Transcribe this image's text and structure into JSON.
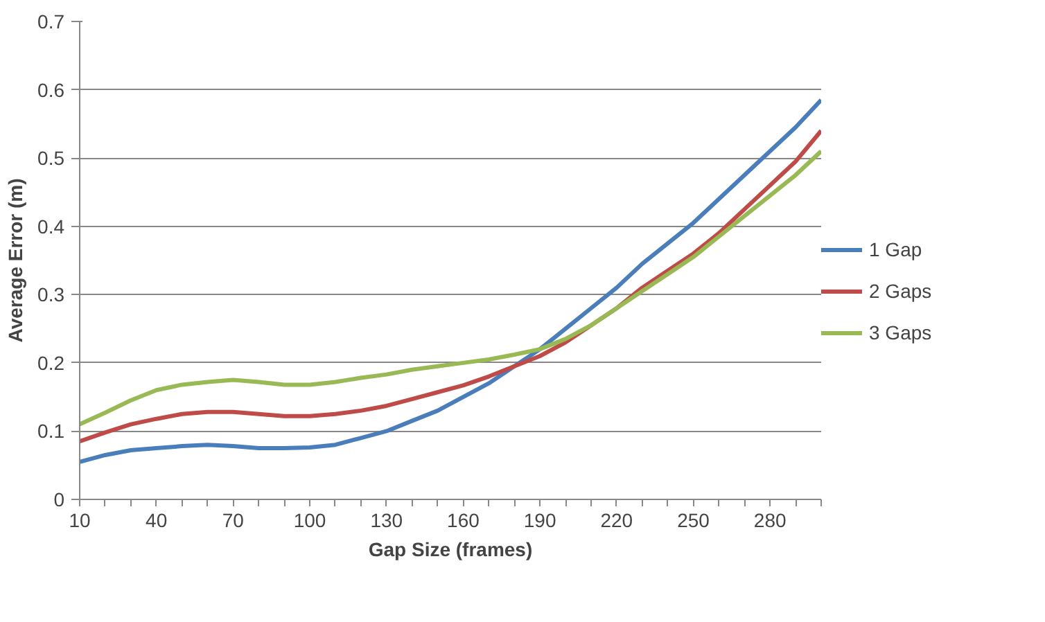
{
  "chart_data": {
    "type": "line",
    "xlabel": "Gap Size (frames)",
    "ylabel": "Average Error (m)",
    "categories": [
      "10",
      null,
      null,
      "40",
      null,
      null,
      "70",
      null,
      null,
      "100",
      null,
      null,
      "130",
      null,
      null,
      "160",
      null,
      null,
      "190",
      null,
      null,
      "220",
      null,
      null,
      "250",
      null,
      null,
      "280",
      null,
      null
    ],
    "ylim": [
      0,
      0.7
    ],
    "yticks": [
      0,
      0.1,
      0.2,
      0.3,
      0.4,
      0.5,
      0.6,
      0.7
    ],
    "grid": "y",
    "legend": "right",
    "marker": "none",
    "line_style": "solid",
    "series": [
      {
        "name": "1 Gap",
        "color": "#4a7ebb",
        "values": [
          0.055,
          0.065,
          0.072,
          0.075,
          0.078,
          0.08,
          0.078,
          0.075,
          0.075,
          0.076,
          0.08,
          0.09,
          0.1,
          0.115,
          0.13,
          0.15,
          0.17,
          0.195,
          0.22,
          0.25,
          0.28,
          0.31,
          0.345,
          0.375,
          0.405,
          0.44,
          0.475,
          0.51,
          0.545,
          0.585
        ]
      },
      {
        "name": "2 Gaps",
        "color": "#be4b48",
        "values": [
          0.085,
          0.098,
          0.11,
          0.118,
          0.125,
          0.128,
          0.128,
          0.125,
          0.122,
          0.122,
          0.125,
          0.13,
          0.137,
          0.147,
          0.157,
          0.167,
          0.18,
          0.195,
          0.21,
          0.23,
          0.255,
          0.28,
          0.31,
          0.335,
          0.36,
          0.39,
          0.425,
          0.46,
          0.495,
          0.54
        ]
      },
      {
        "name": "3 Gaps",
        "color": "#98b954",
        "values": [
          0.11,
          0.127,
          0.145,
          0.16,
          0.168,
          0.172,
          0.175,
          0.172,
          0.168,
          0.168,
          0.172,
          0.178,
          0.183,
          0.19,
          0.195,
          0.2,
          0.205,
          0.212,
          0.22,
          0.235,
          0.255,
          0.28,
          0.305,
          0.33,
          0.355,
          0.385,
          0.415,
          0.445,
          0.475,
          0.51
        ]
      }
    ]
  }
}
